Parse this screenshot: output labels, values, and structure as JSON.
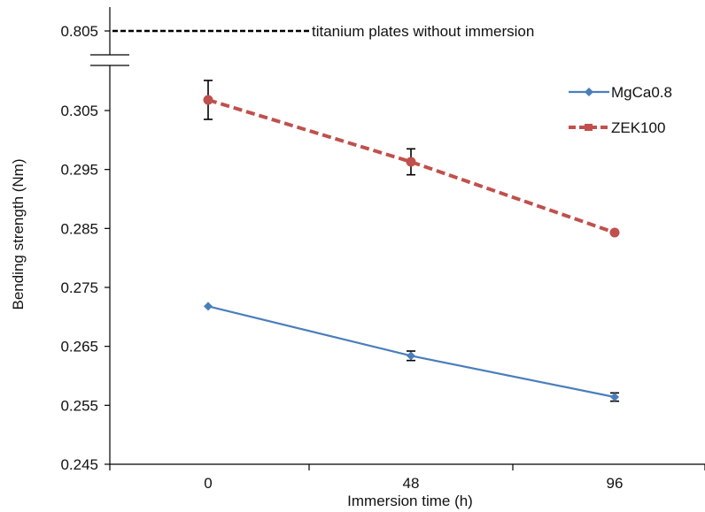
{
  "chart_data": {
    "type": "line",
    "xlabel": "Immersion time (h)",
    "ylabel": "Bending strength (Nm)",
    "categories": [
      "0",
      "48",
      "96"
    ],
    "x": [
      0,
      48,
      96
    ],
    "yticks": [
      "0.245",
      "0.255",
      "0.265",
      "0.275",
      "0.285",
      "0.295",
      "0.305",
      "0.805"
    ],
    "ylim": [
      0.245,
      0.805
    ],
    "axis_break": true,
    "grid": false,
    "legend_position": "top-right",
    "series": [
      {
        "name": "MgCa0.8",
        "values": [
          0.2718,
          0.2634,
          0.2564
        ],
        "errors": [
          0.0,
          0.0008,
          0.0007
        ],
        "color": "#4a7ebb",
        "line_style": "solid",
        "marker": "diamond"
      },
      {
        "name": "ZEK100",
        "values": [
          0.3068,
          0.2963,
          0.2843
        ],
        "errors": [
          0.0033,
          0.0022,
          0.0
        ],
        "color": "#c0504d",
        "line_style": "dashed",
        "marker": "circle"
      }
    ],
    "reference_line": {
      "value": 0.805,
      "label": "titanium plates without immersion",
      "color": "#000000",
      "line_style": "dashed"
    }
  }
}
